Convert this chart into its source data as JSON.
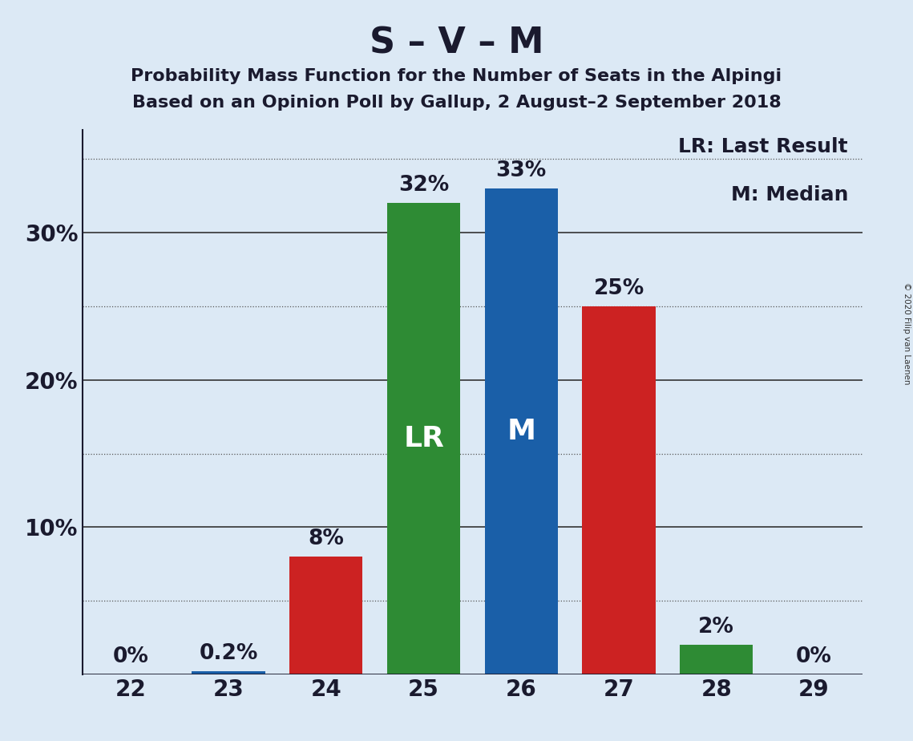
{
  "title": "S – V – M",
  "subtitle1": "Probability Mass Function for the Number of Seats in the Alpingi",
  "subtitle2": "Based on an Opinion Poll by Gallup, 2 August–2 September 2018",
  "copyright": "© 2020 Filip van Laenen",
  "seats": [
    22,
    23,
    24,
    25,
    26,
    27,
    28,
    29
  ],
  "values": [
    0.001,
    0.2,
    8.0,
    32.0,
    33.0,
    25.0,
    2.0,
    0.001
  ],
  "bar_colors": [
    "#1a5fa8",
    "#1a5fa8",
    "#cc2222",
    "#2e8b34",
    "#1a5fa8",
    "#cc2222",
    "#2e8b34",
    "#1a5fa8"
  ],
  "labels": [
    "0%",
    "0.2%",
    "8%",
    "32%",
    "33%",
    "25%",
    "2%",
    "0%"
  ],
  "lr_seat": 25,
  "median_seat": 26,
  "lr_label": "LR",
  "median_label": "M",
  "legend_lr": "LR: Last Result",
  "legend_m": "M: Median",
  "bar_label_color_outside": "#1a1a2e",
  "background_color": "#dce9f5",
  "ylim": [
    0,
    37
  ],
  "solid_lines": [
    10,
    20,
    30
  ],
  "dotted_lines": [
    5,
    15,
    25,
    35
  ],
  "ytick_positions": [
    10,
    20,
    30
  ],
  "ytick_labels": [
    "10%",
    "20%",
    "30%"
  ],
  "title_fontsize": 32,
  "subtitle_fontsize": 16,
  "tick_fontsize": 20,
  "label_fontsize": 19,
  "inside_label_fontsize": 26,
  "legend_fontsize": 18,
  "bar_width": 0.75
}
